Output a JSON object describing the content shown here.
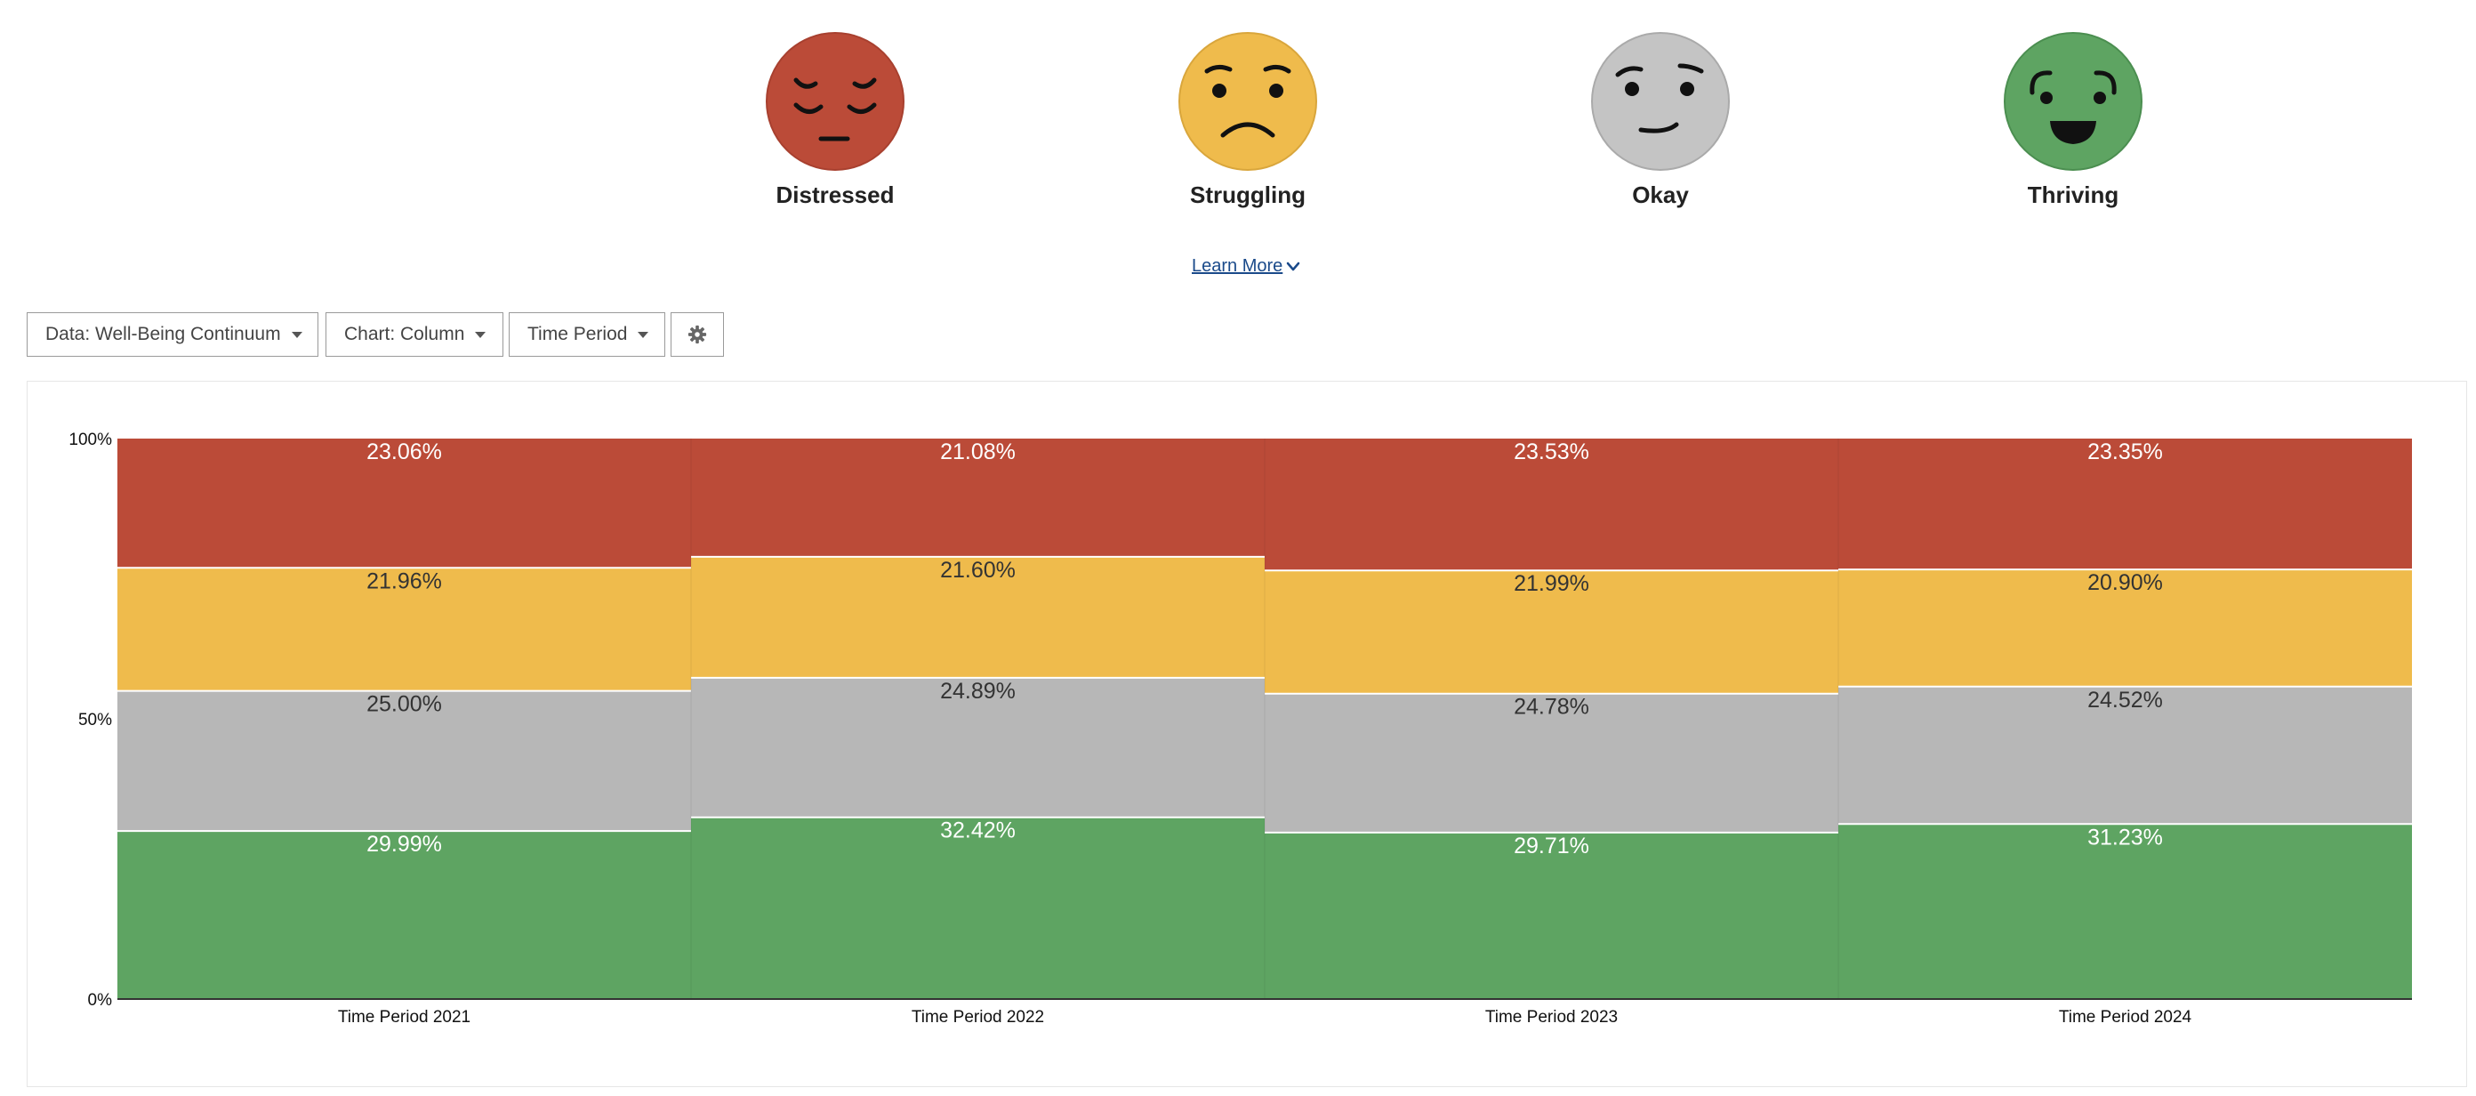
{
  "legend": {
    "items": [
      {
        "label": "Distressed",
        "color": "#bb4b38",
        "icon": "distressed-face-icon"
      },
      {
        "label": "Struggling",
        "color": "#efbb4c",
        "icon": "struggling-face-icon"
      },
      {
        "label": "Okay",
        "color": "#bdbdbd",
        "icon": "okay-face-icon"
      },
      {
        "label": "Thriving",
        "color": "#5ea462",
        "icon": "thriving-face-icon"
      }
    ]
  },
  "learn_more": {
    "label": "Learn More",
    "icon": "chevron-down-icon"
  },
  "toolbar": {
    "data_label": "Data: Well-Being Continuum",
    "chart_label": "Chart: Column",
    "period_label": "Time Period",
    "settings_icon": "gear-icon"
  },
  "chart_data": {
    "type": "bar",
    "stacked": true,
    "normalized": true,
    "categories": [
      "Time Period 2021",
      "Time Period 2022",
      "Time Period 2023",
      "Time Period 2024"
    ],
    "y_ticks": [
      "0%",
      "50%",
      "100%"
    ],
    "ylim": [
      0,
      100
    ],
    "series": [
      {
        "name": "Thriving",
        "color": "#5ea462",
        "label_color": "#ffffff",
        "values": [
          29.99,
          32.42,
          29.71,
          31.23
        ],
        "labels": [
          "29.99%",
          "32.42%",
          "29.71%",
          "31.23%"
        ]
      },
      {
        "name": "Okay",
        "color": "#b7b7b7",
        "label_color": "#333333",
        "values": [
          25.0,
          24.89,
          24.78,
          24.52
        ],
        "labels": [
          "25.00%",
          "24.89%",
          "24.78%",
          "24.52%"
        ]
      },
      {
        "name": "Struggling",
        "color": "#efbb4c",
        "label_color": "#333333",
        "values": [
          21.96,
          21.6,
          21.99,
          20.9
        ],
        "labels": [
          "21.96%",
          "21.60%",
          "21.99%",
          "20.90%"
        ]
      },
      {
        "name": "Distressed",
        "color": "#bb4b38",
        "label_color": "#ffffff",
        "values": [
          23.06,
          21.08,
          23.53,
          23.35
        ],
        "labels": [
          "23.06%",
          "21.08%",
          "23.53%",
          "23.35%"
        ]
      }
    ]
  }
}
